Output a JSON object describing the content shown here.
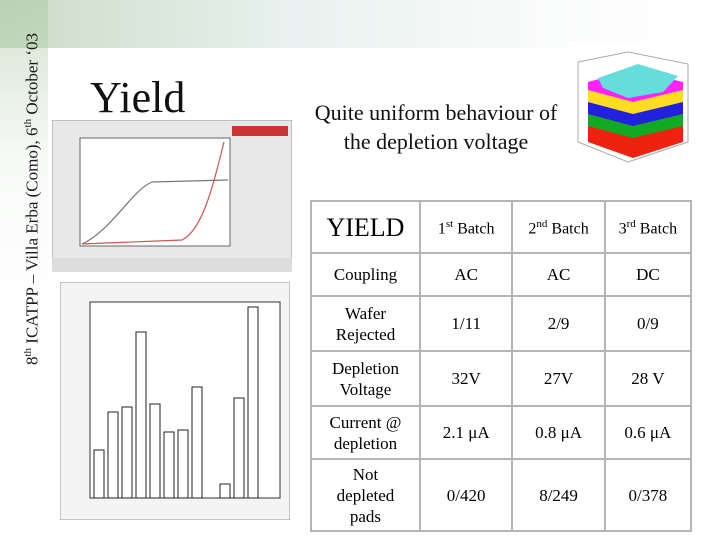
{
  "sidebar": {
    "parts": [
      "8",
      "th",
      " ICATPP – Villa Erba (Como), 6",
      "th",
      " October ‘03"
    ]
  },
  "title": "Yield",
  "subtitle": {
    "lines": [
      "Quite uniform behaviour of",
      "the depletion voltage"
    ]
  },
  "table": {
    "header": [
      {
        "pre": "YIELD"
      },
      {
        "pre": "1",
        "sup": "st",
        "post": " Batch"
      },
      {
        "pre": "2",
        "sup": "nd",
        "post": " Batch"
      },
      {
        "pre": "3",
        "sup": "rd",
        "post": " Batch"
      }
    ],
    "rows": [
      {
        "label": [
          "Coupling"
        ],
        "cells": [
          "AC",
          "AC",
          "DC"
        ]
      },
      {
        "label": [
          "Wafer",
          "Rejected"
        ],
        "cells": [
          "1/11",
          "2/9",
          "0/9"
        ]
      },
      {
        "label": [
          "Depletion",
          "Voltage"
        ],
        "cells": [
          "32V",
          "27V",
          "28 V"
        ]
      },
      {
        "label": [
          "Current @",
          "depletion"
        ],
        "cells": [
          "2.1 μA",
          "0.8 μA",
          "0.6 μA"
        ]
      },
      {
        "label": [
          "Not",
          "depleted",
          "pads"
        ],
        "cells": [
          "0/420",
          "8/249",
          "0/378"
        ]
      }
    ]
  }
}
